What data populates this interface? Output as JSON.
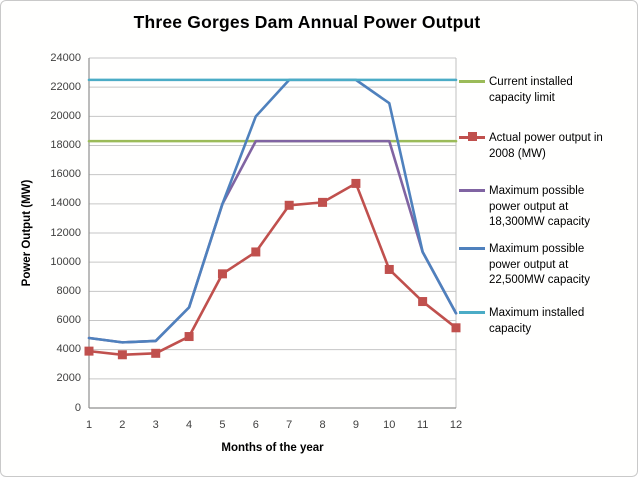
{
  "title": "Three Gorges Dam Annual Power Output",
  "chart_data": {
    "type": "line",
    "title": "Three Gorges Dam Annual Power Output",
    "xlabel": "Months of the year",
    "ylabel": "Power Output (MW)",
    "x": [
      1,
      2,
      3,
      4,
      5,
      6,
      7,
      8,
      9,
      10,
      11,
      12
    ],
    "ylim": [
      0,
      24000
    ],
    "ytick_step": 2000,
    "grid": true,
    "legend_position": "right",
    "series": [
      {
        "name": "Current installed capacity limit",
        "color": "#9BBB59",
        "marker": "none",
        "values": [
          18300,
          18300,
          18300,
          18300,
          18300,
          18300,
          18300,
          18300,
          18300,
          18300,
          18300,
          18300
        ]
      },
      {
        "name": "Actual power output in 2008 (MW)",
        "color": "#C0504D",
        "marker": "square",
        "values": [
          3900,
          3650,
          3750,
          4900,
          9200,
          10700,
          13900,
          14100,
          15400,
          9500,
          7300,
          5500
        ]
      },
      {
        "name": "Maximum possible power output at 18,300MW capacity",
        "color": "#8064A2",
        "marker": "none",
        "values": [
          4800,
          4500,
          4600,
          6900,
          14000,
          18300,
          18300,
          18300,
          18300,
          18300,
          10700,
          6500
        ]
      },
      {
        "name": "Maximum possible power output at 22,500MW capacity",
        "color": "#4F81BD",
        "marker": "none",
        "values": [
          4800,
          4500,
          4600,
          6900,
          14000,
          20000,
          22500,
          22500,
          22500,
          20900,
          10700,
          6500
        ]
      },
      {
        "name": "Maximum installed capacity",
        "color": "#4BACC6",
        "marker": "none",
        "values": [
          22500,
          22500,
          22500,
          22500,
          22500,
          22500,
          22500,
          22500,
          22500,
          22500,
          22500,
          22500
        ]
      }
    ]
  },
  "legend": {
    "items": [
      {
        "label": "Current installed\ncapacity limit"
      },
      {
        "label": "Actual power output in\n2008 (MW)"
      },
      {
        "label": "Maximum possible\npower output at\n18,300MW capacity"
      },
      {
        "label": "Maximum possible\npower output at\n22,500MW capacity"
      },
      {
        "label": "Maximum installed\ncapacity"
      }
    ]
  },
  "colors": {
    "gridline": "#C6C6C6",
    "plot_border": "#C0C0C0",
    "axis_line": "#8F8F8F",
    "tick_text": "#404040"
  }
}
